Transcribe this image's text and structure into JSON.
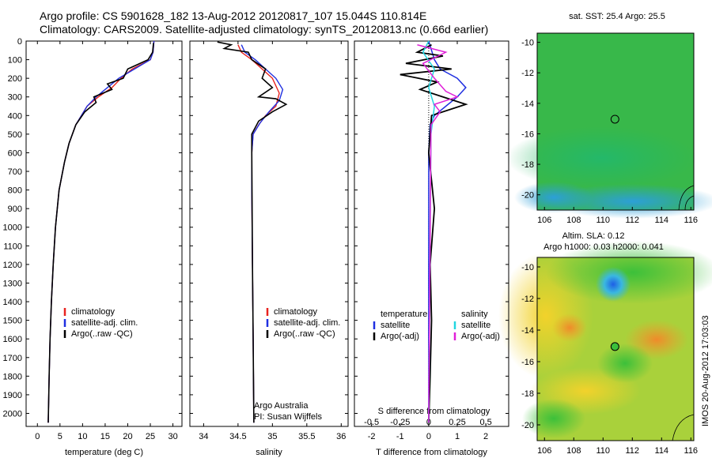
{
  "header": {
    "line1": "Argo profile: CS 5901628_182 13-Aug-2012 20120817_107 15.044S 110.814E",
    "line2": "Climatology: CARS2009. Satellite-adjusted climatology: synTS_20120813.nc (0.66d earlier)"
  },
  "colors": {
    "climatology": "#e8231f",
    "satellite": "#1f2fe0",
    "argo": "#000000",
    "satellite_salinity": "#22d6e0",
    "argo_salinity": "#e020d8"
  },
  "chart_data": [
    {
      "type": "line",
      "xlabel": "temperature (deg C)",
      "ylabel": "",
      "xlim": [
        -2.5,
        32
      ],
      "ylim": [
        2070,
        0
      ],
      "xticks": [
        0,
        5,
        10,
        15,
        20,
        25,
        30
      ],
      "yticks": [
        0,
        100,
        200,
        300,
        400,
        500,
        600,
        700,
        800,
        900,
        1000,
        1100,
        1200,
        1300,
        1400,
        1500,
        1600,
        1700,
        1800,
        1900,
        2000
      ],
      "legend": [
        "climatology",
        "satellite-adj. clim.",
        "Argo(..raw -QC)"
      ],
      "series": [
        {
          "name": "climatology",
          "x": [
            25.8,
            25.6,
            25.0,
            21.0,
            18.5,
            16.5,
            13.5,
            11.0,
            8.5,
            7.0,
            6.0,
            4.8,
            4.0,
            3.5,
            3.1,
            2.8,
            2.6,
            2.4
          ],
          "y": [
            0,
            60,
            100,
            150,
            200,
            250,
            300,
            350,
            450,
            550,
            650,
            800,
            1000,
            1200,
            1400,
            1600,
            1800,
            2050
          ]
        },
        {
          "name": "satellite-adj. clim.",
          "x": [
            25.8,
            25.6,
            25.0,
            21.5,
            18.0,
            15.5,
            13.0,
            11.0,
            8.5,
            7.0,
            6.0,
            4.8,
            4.0,
            3.5,
            3.1,
            2.8,
            2.6,
            2.4
          ],
          "y": [
            0,
            60,
            100,
            150,
            200,
            250,
            300,
            350,
            450,
            550,
            650,
            800,
            1000,
            1200,
            1400,
            1600,
            1800,
            2050
          ]
        },
        {
          "name": "Argo(..raw -QC)",
          "x": [
            25.7,
            25.5,
            24.5,
            20.0,
            19.0,
            15.5,
            16.5,
            12.5,
            13.0,
            10.5,
            8.5,
            7.0,
            6.0,
            4.8,
            4.0,
            3.5,
            3.1,
            2.8,
            2.6,
            2.4
          ],
          "y": [
            10,
            60,
            100,
            150,
            200,
            230,
            260,
            300,
            330,
            380,
            450,
            550,
            650,
            800,
            1000,
            1200,
            1400,
            1600,
            1800,
            2050
          ]
        }
      ]
    },
    {
      "type": "line",
      "xlabel": "salinity",
      "ylabel": "",
      "xlim": [
        33.8,
        36.1
      ],
      "ylim": [
        2070,
        0
      ],
      "xticks": [
        34,
        34.5,
        35,
        35.5,
        36
      ],
      "legend": [
        "climatology",
        "satellite-adj. clim.",
        "Argo(..raw -QC)"
      ],
      "annotations": [
        "Argo Australia",
        "PI: Susan Wijffels"
      ],
      "series": [
        {
          "name": "climatology",
          "x": [
            34.5,
            34.55,
            34.7,
            34.85,
            35.0,
            35.1,
            35.05,
            34.9,
            34.8,
            34.72,
            34.7,
            34.7,
            34.71,
            34.72,
            34.73
          ],
          "y": [
            20,
            60,
            100,
            150,
            200,
            280,
            350,
            400,
            450,
            500,
            600,
            800,
            1200,
            1600,
            2050
          ]
        },
        {
          "name": "satellite-adj. clim.",
          "x": [
            34.55,
            34.6,
            34.75,
            34.9,
            35.05,
            35.15,
            35.1,
            34.95,
            34.82,
            34.72,
            34.7,
            34.7,
            34.71,
            34.72,
            34.73
          ],
          "y": [
            20,
            60,
            100,
            150,
            200,
            260,
            320,
            380,
            440,
            500,
            600,
            800,
            1200,
            1600,
            2050
          ]
        },
        {
          "name": "Argo(..raw -QC)",
          "x": [
            34.2,
            34.4,
            34.3,
            34.65,
            34.7,
            34.9,
            34.85,
            35.0,
            34.8,
            35.05,
            35.2,
            35.0,
            34.8,
            34.7,
            34.7,
            34.71,
            34.72,
            34.73
          ],
          "y": [
            5,
            20,
            40,
            60,
            100,
            150,
            200,
            250,
            300,
            310,
            340,
            380,
            430,
            500,
            600,
            1200,
            1600,
            2050
          ]
        }
      ]
    },
    {
      "type": "line",
      "xlabel": "T difference from climatology",
      "x2label": "S difference from climatology",
      "ylabel": "",
      "xlim": [
        -2.6,
        2.8
      ],
      "x2lim": [
        -0.65,
        0.7
      ],
      "ylim": [
        2070,
        0
      ],
      "xticks": [
        -2,
        -1,
        0,
        1,
        2
      ],
      "x2ticks": [
        -0.5,
        -0.25,
        0,
        0.25,
        0.5
      ],
      "legend_headers": [
        "temperature",
        "salinity"
      ],
      "legend": [
        "satellite",
        "Argo(-adj)",
        "satellite",
        "Argo(-adj)"
      ],
      "series": [
        {
          "name": "temperature satellite",
          "x": [
            0.0,
            0.2,
            0.4,
            1.0,
            1.3,
            1.0,
            0.6,
            0.2,
            0.05,
            0.0,
            0.0
          ],
          "y": [
            0,
            100,
            150,
            200,
            250,
            300,
            350,
            400,
            450,
            600,
            2050
          ]
        },
        {
          "name": "temperature Argo(-adj)",
          "x": [
            0.1,
            -0.4,
            0.5,
            -0.8,
            0.8,
            -1.0,
            0.3,
            -0.3,
            0.5,
            1.3,
            0.1,
            0.0,
            0.2,
            0.05,
            0.1,
            0.05,
            0.0
          ],
          "y": [
            20,
            60,
            80,
            120,
            150,
            180,
            220,
            260,
            300,
            340,
            400,
            600,
            900,
            1200,
            1500,
            1800,
            2050
          ]
        },
        {
          "name": "salinity satellite",
          "x": [
            0.0,
            -0.05,
            0.05,
            0.0,
            0.05,
            0.02,
            0.0
          ],
          "y": [
            0,
            60,
            150,
            250,
            350,
            500,
            2050
          ]
        },
        {
          "name": "salinity Argo(-adj)",
          "x": [
            -0.1,
            0.15,
            -0.05,
            0.05,
            0.15,
            0.25,
            0.05,
            0.1,
            0.02,
            0.0
          ],
          "y": [
            20,
            60,
            120,
            200,
            270,
            300,
            340,
            380,
            450,
            2050
          ]
        }
      ]
    },
    {
      "type": "heatmap",
      "title": "sat. SST: 25.4  Argo: 25.5",
      "xlim": [
        105.5,
        116.2
      ],
      "ylim": [
        -21,
        -9.4
      ],
      "xticks": [
        106,
        108,
        110,
        112,
        114,
        116
      ],
      "yticks": [
        -10,
        -12,
        -14,
        -16,
        -18,
        -20
      ],
      "marker": {
        "lon": 110.814,
        "lat": -15.044
      }
    },
    {
      "type": "heatmap",
      "title": "Altim. SLA: 0.12",
      "subtitle": "Argo h1000: 0.03 h2000: 0.041",
      "xlim": [
        105.5,
        116.2
      ],
      "ylim": [
        -21,
        -9.4
      ],
      "xticks": [
        106,
        108,
        110,
        112,
        114,
        116
      ],
      "yticks": [
        -10,
        -12,
        -14,
        -16,
        -18,
        -20
      ],
      "marker": {
        "lon": 110.814,
        "lat": -15.044
      }
    }
  ],
  "side_text": "IMOS 20-Aug-2012 17:03:03"
}
